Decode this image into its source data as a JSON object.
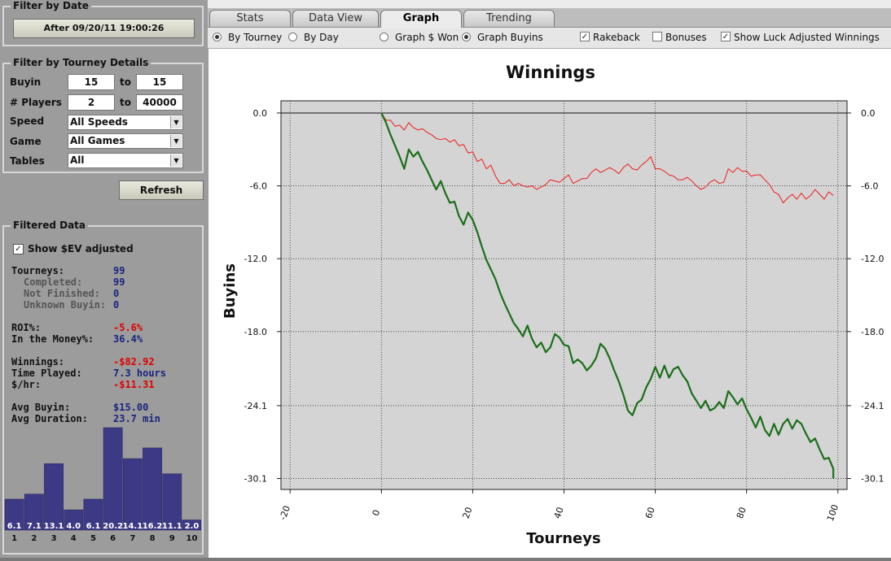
{
  "filter_by_date": {
    "title": "Filter by Date",
    "button_label": "After 09/20/11 19:00:26"
  },
  "filter_by_tourney": {
    "title": "Filter by Tourney Details",
    "buyin_label": "Buyin",
    "buyin_min": "15",
    "buyin_max": "15",
    "players_label": "# Players",
    "players_min": "2",
    "players_max": "40000",
    "to_label": "to",
    "speed_label": "Speed",
    "speed_value": "All Speeds",
    "game_label": "Game",
    "game_value": "All Games",
    "tables_label": "Tables",
    "tables_value": "All",
    "refresh_label": "Refresh"
  },
  "filtered_data": {
    "title": "Filtered Data",
    "show_ev_label": "Show $EV adjusted",
    "show_ev_checked": true,
    "stats": [
      {
        "label": "Tourneys:",
        "value": "99",
        "sub": false,
        "neg": false
      },
      {
        "label": "Completed:",
        "value": "99",
        "sub": true,
        "neg": false
      },
      {
        "label": "Not Finished:",
        "value": "0",
        "sub": true,
        "neg": false
      },
      {
        "label": "Unknown Buyin:",
        "value": "0",
        "sub": true,
        "neg": false
      },
      {
        "label": "ROI%:",
        "value": "-5.6%",
        "sub": false,
        "neg": true
      },
      {
        "label": "In the Money%:",
        "value": "36.4%",
        "sub": false,
        "neg": false
      },
      {
        "label": "Winnings:",
        "value": "-$82.92",
        "sub": false,
        "neg": true
      },
      {
        "label": "Time Played:",
        "value": "7.3 hours",
        "sub": false,
        "neg": false
      },
      {
        "label": "$/hr:",
        "value": "-$11.31",
        "sub": false,
        "neg": true
      },
      {
        "label": "Avg Buyin:",
        "value": "$15.00",
        "sub": false,
        "neg": false
      },
      {
        "label": "Avg Duration:",
        "value": "23.7 min",
        "sub": false,
        "neg": false
      }
    ],
    "histogram": {
      "bar_color": "#3d3a85",
      "values": [
        6.1,
        7.1,
        13.1,
        4.0,
        6.1,
        20.2,
        14.1,
        16.2,
        11.1,
        2.0
      ],
      "labels": [
        "6.1",
        "7.1",
        "13.1",
        "4.0",
        "6.1",
        "20.2",
        "14.1",
        "16.2",
        "11.1",
        "2.0"
      ],
      "positions": [
        "1",
        "2",
        "3",
        "4",
        "5",
        "6",
        "7",
        "8",
        "9",
        "10"
      ]
    }
  },
  "tabs": [
    {
      "label": "Stats",
      "active": false
    },
    {
      "label": "Data View",
      "active": false
    },
    {
      "label": "Graph",
      "active": true
    },
    {
      "label": "Trending",
      "active": false
    }
  ],
  "graph_options": {
    "by_tourney": {
      "label": "By Tourney",
      "selected": true
    },
    "by_day": {
      "label": "By Day",
      "selected": false
    },
    "graph_won": {
      "label": "Graph $ Won",
      "selected": false
    },
    "graph_buyins": {
      "label": "Graph Buyins",
      "selected": true
    },
    "rakeback": {
      "label": "Rakeback",
      "checked": true
    },
    "bonuses": {
      "label": "Bonuses",
      "checked": false
    },
    "luck_adjusted": {
      "label": "Show Luck Adjusted Winnings",
      "checked": true
    }
  },
  "chart_data": {
    "type": "line",
    "title": "Winnings",
    "xlabel": "Tourneys",
    "ylabel": "Buyins",
    "xlim": [
      -22,
      102
    ],
    "ylim": [
      -31.0,
      1.0
    ],
    "x_ticks": [
      "-20",
      "0",
      "20",
      "40",
      "60",
      "80",
      "100"
    ],
    "y_ticks": [
      "0.0",
      "-6.0",
      "-12.0",
      "-18.0",
      "-24.1",
      "-30.1"
    ],
    "y_tick_values": [
      0.0,
      -6.0,
      -12.0,
      -18.0,
      -24.1,
      -30.1
    ],
    "grid": true,
    "plot_bg": "#d4d4d4",
    "series": [
      {
        "color": "#ee1c1c",
        "values": [
          0.0,
          -0.6,
          -0.6,
          -1.1,
          -1.0,
          -1.4,
          -0.8,
          -1.2,
          -1.4,
          -1.3,
          -1.6,
          -1.8,
          -2.1,
          -2.2,
          -2.1,
          -2.4,
          -2.2,
          -2.7,
          -2.6,
          -3.3,
          -3.2,
          -4.0,
          -3.8,
          -4.6,
          -4.3,
          -5.2,
          -5.8,
          -5.8,
          -5.5,
          -6.0,
          -5.8,
          -6.0,
          -6.1,
          -6.0,
          -6.3,
          -6.1,
          -5.9,
          -5.5,
          -5.6,
          -5.7,
          -5.4,
          -5.1,
          -5.8,
          -5.6,
          -5.4,
          -5.4,
          -4.9,
          -4.6,
          -4.9,
          -4.7,
          -4.5,
          -4.7,
          -5.0,
          -4.5,
          -4.2,
          -4.6,
          -4.7,
          -4.3,
          -4.0,
          -3.6,
          -4.6,
          -4.6,
          -4.8,
          -5.1,
          -5.2,
          -5.5,
          -5.5,
          -5.3,
          -5.6,
          -6.0,
          -6.3,
          -6.1,
          -5.7,
          -5.5,
          -5.8,
          -5.7,
          -4.6,
          -4.9,
          -4.5,
          -4.8,
          -4.8,
          -5.2,
          -5.1,
          -5.1,
          -5.5,
          -5.9,
          -6.5,
          -6.7,
          -7.4,
          -7.0,
          -6.7,
          -7.1,
          -6.6,
          -7.1,
          -6.8,
          -6.3,
          -6.7,
          -7.1,
          -6.5,
          -6.8
        ],
        "x": [
          0,
          1,
          2,
          3,
          4,
          5,
          6,
          7,
          8,
          9,
          10,
          11,
          12,
          13,
          14,
          15,
          16,
          17,
          18,
          19,
          20,
          21,
          22,
          23,
          24,
          25,
          26,
          27,
          28,
          29,
          30,
          31,
          32,
          33,
          34,
          35,
          36,
          37,
          38,
          39,
          40,
          41,
          42,
          43,
          44,
          45,
          46,
          47,
          48,
          49,
          50,
          51,
          52,
          53,
          54,
          55,
          56,
          57,
          58,
          59,
          60,
          61,
          62,
          63,
          64,
          65,
          66,
          67,
          68,
          69,
          70,
          71,
          72,
          73,
          74,
          75,
          76,
          77,
          78,
          79,
          80,
          81,
          82,
          83,
          84,
          85,
          86,
          87,
          88,
          89,
          90,
          91,
          92,
          93,
          94,
          95,
          96,
          97,
          98,
          99
        ],
        "line_width": 1
      },
      {
        "color": "#1a6e1a",
        "values": [
          0.0,
          -0.8,
          -1.8,
          -2.7,
          -3.6,
          -4.6,
          -3.0,
          -3.6,
          -3.2,
          -4.0,
          -4.7,
          -5.5,
          -6.3,
          -5.6,
          -6.6,
          -7.4,
          -7.3,
          -8.5,
          -9.2,
          -8.2,
          -8.8,
          -9.8,
          -11.0,
          -12.1,
          -12.9,
          -13.7,
          -14.8,
          -15.7,
          -16.5,
          -17.3,
          -17.8,
          -18.4,
          -17.5,
          -18.6,
          -19.3,
          -18.9,
          -19.7,
          -19.3,
          -18.2,
          -18.5,
          -19.1,
          -19.2,
          -20.6,
          -20.3,
          -20.6,
          -21.2,
          -20.8,
          -20.2,
          -19.0,
          -19.4,
          -20.2,
          -21.2,
          -22.1,
          -23.2,
          -24.5,
          -24.9,
          -23.9,
          -23.6,
          -22.6,
          -21.9,
          -20.9,
          -21.8,
          -20.8,
          -21.8,
          -21.1,
          -20.9,
          -21.6,
          -22.1,
          -23.1,
          -23.7,
          -24.3,
          -23.7,
          -24.5,
          -24.3,
          -23.8,
          -24.3,
          -22.9,
          -23.4,
          -24.0,
          -23.5,
          -24.4,
          -25.1,
          -25.9,
          -25.0,
          -26.1,
          -26.6,
          -25.6,
          -26.5,
          -25.6,
          -25.2,
          -26.0,
          -25.3,
          -25.6,
          -26.4,
          -27.1,
          -26.8,
          -27.7,
          -28.5,
          -28.4,
          -29.3,
          -30.1
        ],
        "x": [
          0,
          1,
          2,
          3,
          4,
          5,
          6,
          7,
          8,
          9,
          10,
          11,
          12,
          13,
          14,
          15,
          16,
          17,
          18,
          19,
          20,
          21,
          22,
          23,
          24,
          25,
          26,
          27,
          28,
          29,
          30,
          31,
          32,
          33,
          34,
          35,
          36,
          37,
          38,
          39,
          40,
          41,
          42,
          43,
          44,
          45,
          46,
          47,
          48,
          49,
          50,
          51,
          52,
          53,
          54,
          55,
          56,
          57,
          58,
          59,
          60,
          61,
          62,
          63,
          64,
          65,
          66,
          67,
          68,
          69,
          70,
          71,
          72,
          73,
          74,
          75,
          76,
          77,
          78,
          79,
          80,
          81,
          82,
          83,
          84,
          85,
          86,
          87,
          88,
          89,
          90,
          91,
          92,
          93,
          94,
          95,
          96,
          97,
          98,
          99,
          99
        ],
        "line_width": 2.2
      }
    ]
  }
}
